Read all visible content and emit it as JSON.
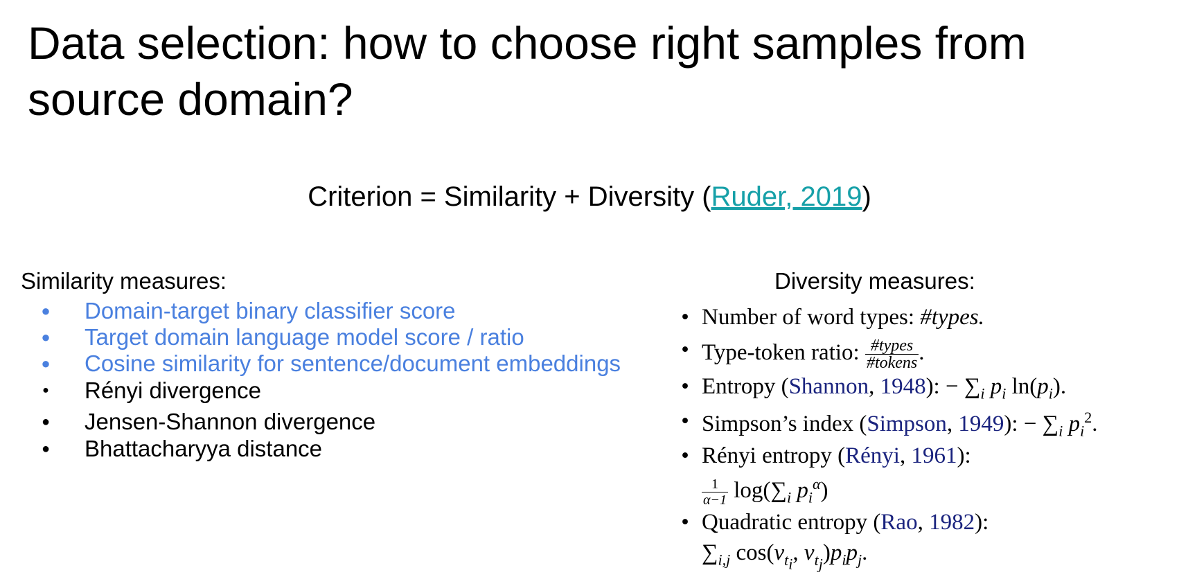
{
  "slide": {
    "title": "Data selection: how to choose right samples from source domain?",
    "criterion": {
      "prefix": "Criterion = Similarity + Diversity (",
      "link": "Ruder, 2019",
      "suffix": ")"
    },
    "similarity": {
      "heading": "Similarity measures:",
      "items": [
        "Domain-target binary classifier score",
        "Target domain language model score / ratio",
        "Cosine similarity for sentence/document embeddings",
        "Rényi divergence",
        "Jensen-Shannon divergence",
        "Bhattacharyya distance"
      ],
      "bullet": "●"
    },
    "diversity": {
      "heading": "Diversity measures:",
      "bullet": "•",
      "items": [
        {
          "label": "Number of word types: ",
          "formula": "#types."
        },
        {
          "label": "Type-token ratio: ",
          "num": "#types",
          "den": "#tokens"
        },
        {
          "label": "Entropy (",
          "cite_author": "Shannon",
          "cite_year": "1948",
          "tail": "): − ∑",
          "formula": "p"
        },
        {
          "label": "Simpson’s index (",
          "cite_author": "Simpson",
          "cite_year": "1949",
          "tail": "): − ∑"
        },
        {
          "label": "Rényi entropy (",
          "cite_author": "Rényi",
          "cite_year": "1961",
          "tail": "):"
        },
        {
          "label": "Quadratic entropy (",
          "cite_author": "Rao",
          "cite_year": "1982",
          "tail": "):"
        }
      ]
    }
  }
}
